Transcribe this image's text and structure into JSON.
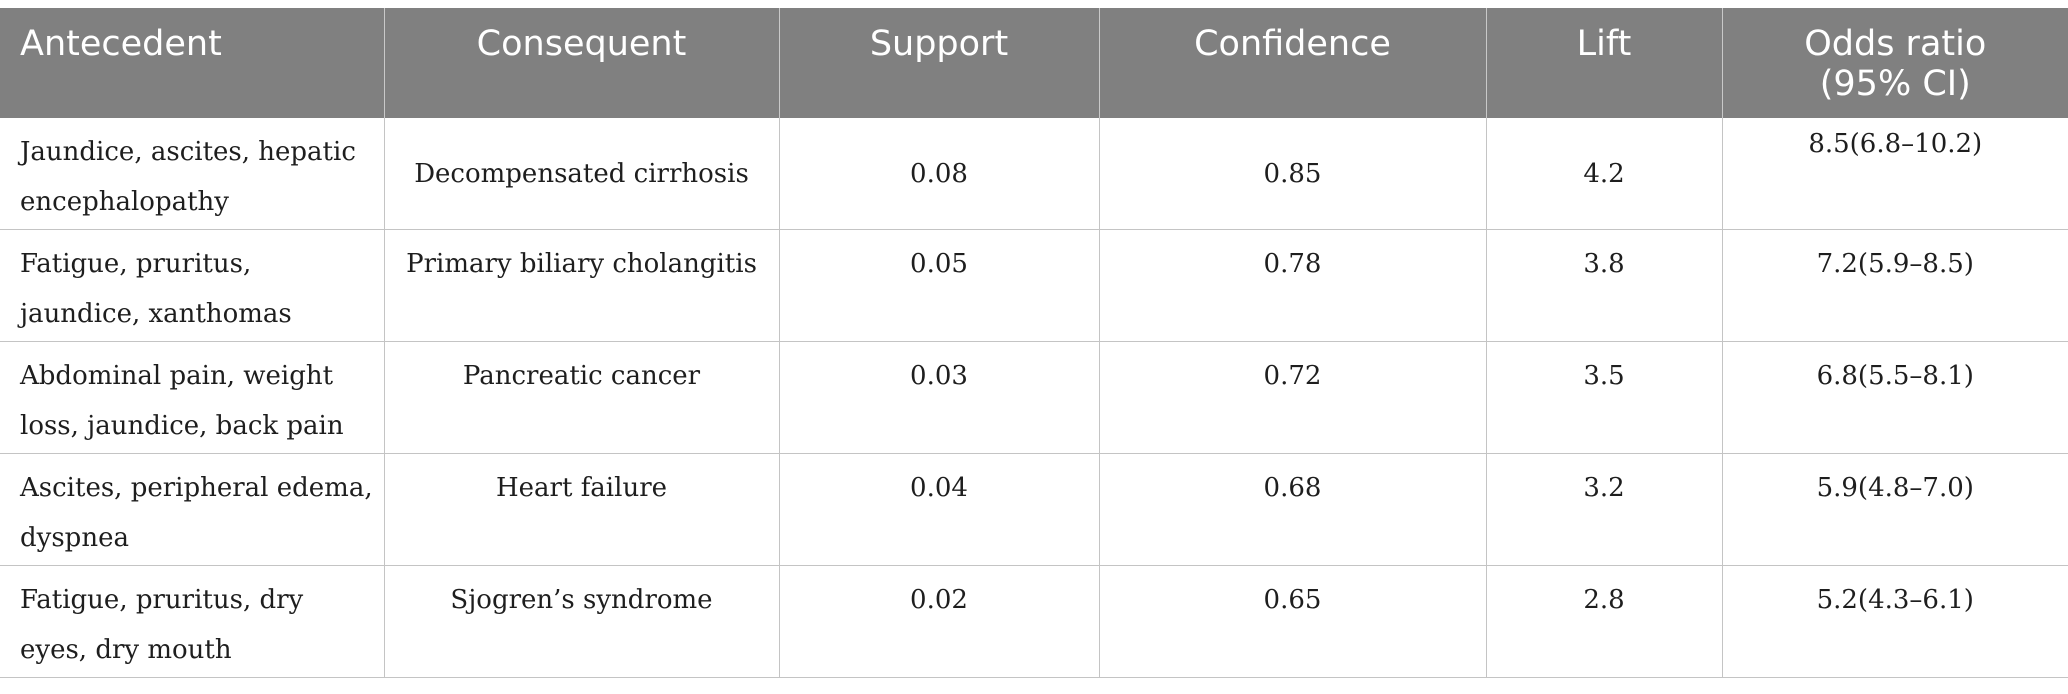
{
  "table": {
    "headers": [
      "Antecedent",
      "Consequent",
      "Support",
      "Confidence",
      "Lift",
      "Odds ratio\n(95% CI)"
    ],
    "rows": [
      [
        "Jaundice, ascites, hepatic encephalopathy",
        "Decompensated cirrhosis",
        "0.08",
        "0.85",
        "4.2",
        "8.5(6.8–10.2)"
      ],
      [
        "Fatigue, pruritus, jaundice, xanthomas",
        "Primary biliary cholangitis",
        "0.05",
        "0.78",
        "3.8",
        "7.2(5.9–8.5)"
      ],
      [
        "Abdominal pain, weight loss, jaundice, back pain",
        "Pancreatic cancer",
        "0.03",
        "0.72",
        "3.5",
        "6.8(5.5–8.1)"
      ],
      [
        "Ascites, peripheral edema, dyspnea",
        "Heart failure",
        "0.04",
        "0.68",
        "3.2",
        "5.9(4.8–7.0)"
      ],
      [
        "Fatigue, pruritus, dry eyes, dry mouth",
        "Sjogren’s syndrome",
        "0.02",
        "0.65",
        "2.8",
        "5.2(4.3–6.1)"
      ]
    ]
  }
}
